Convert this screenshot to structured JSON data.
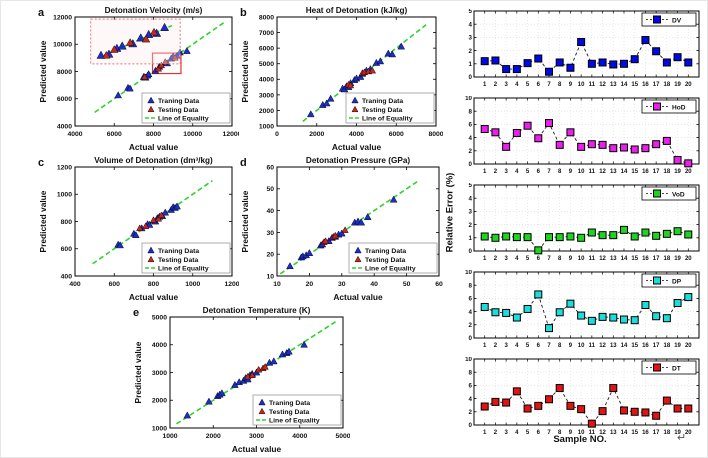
{
  "figure": {
    "trailing_mark": "↵"
  },
  "shared": {
    "axis_xlabel": "Actual value",
    "axis_ylabel": "Predicted value",
    "legend": {
      "train": "Traning Data",
      "test": "Testing Data",
      "line": "Line of Equality"
    },
    "colors": {
      "train": "#1b2ecb",
      "test": "#c9271a",
      "equality": "#2fd32f",
      "highlight": "#e83030",
      "inset_border": "#f07070"
    }
  },
  "chart_data": {
    "shared_ylabel": "Relative Error  (%)",
    "shared_xlabel": "Sample NO.",
    "samples": [
      1,
      2,
      3,
      4,
      5,
      6,
      7,
      8,
      9,
      10,
      11,
      12,
      13,
      14,
      15,
      16,
      17,
      18,
      19,
      20
    ],
    "scatter_plots": [
      {
        "id": "a",
        "letter": "a",
        "type": "scatter",
        "title": "Detonation Velocity (m/s)",
        "xlim": [
          4000,
          12000
        ],
        "ylim": [
          4000,
          12000
        ],
        "xticks": [
          4000,
          6000,
          8000,
          10000,
          12000
        ],
        "yticks": [
          4000,
          6000,
          8000,
          10000,
          12000
        ],
        "line": [
          5000,
          11700
        ],
        "train": [
          [
            6200,
            6250
          ],
          [
            6700,
            6800
          ],
          [
            6800,
            6750
          ],
          [
            7500,
            7600
          ],
          [
            7600,
            7550
          ],
          [
            7700,
            7700
          ],
          [
            7750,
            7800
          ],
          [
            8100,
            8050
          ],
          [
            8300,
            8350
          ],
          [
            8600,
            8650
          ],
          [
            8700,
            8600
          ],
          [
            8900,
            8950
          ],
          [
            9000,
            9100
          ],
          [
            9200,
            9150
          ],
          [
            9350,
            9400
          ],
          [
            9700,
            9500
          ]
        ],
        "test": [
          [
            7550,
            7600
          ],
          [
            8250,
            8200
          ],
          [
            8400,
            8450
          ],
          [
            8600,
            8700
          ],
          [
            9100,
            9000
          ]
        ],
        "highlight_box": [
          7950,
          7850,
          9400,
          9350
        ],
        "inset": {
          "region": [
            7950,
            9450
          ],
          "box": [
            0.1,
            0.02,
            0.57,
            0.41
          ],
          "train": [
            [
              8050,
              8100
            ],
            [
              8200,
              8150
            ],
            [
              8350,
              8400
            ],
            [
              8450,
              8500
            ],
            [
              8650,
              8600
            ],
            [
              8800,
              8850
            ],
            [
              8950,
              9000
            ],
            [
              9100,
              9050
            ],
            [
              9250,
              9300
            ]
          ],
          "test": [
            [
              8150,
              8100
            ],
            [
              8300,
              8350
            ],
            [
              8600,
              8650
            ],
            [
              8900,
              8800
            ],
            [
              9050,
              9100
            ]
          ]
        }
      },
      {
        "id": "b",
        "letter": "b",
        "type": "scatter",
        "title": "Heat of Detonation (kJ/kg)",
        "xlim": [
          0,
          8000
        ],
        "ylim": [
          1000,
          8000
        ],
        "xticks": [
          0,
          2000,
          4000,
          6000,
          8000
        ],
        "yticks": [
          1000,
          2000,
          3000,
          4000,
          5000,
          6000,
          7000,
          8000
        ],
        "line": [
          1300,
          7500
        ],
        "train": [
          [
            1700,
            1750
          ],
          [
            2300,
            2350
          ],
          [
            2500,
            2450
          ],
          [
            2700,
            2750
          ],
          [
            3300,
            3400
          ],
          [
            3400,
            3350
          ],
          [
            3500,
            3550
          ],
          [
            3600,
            3500
          ],
          [
            3700,
            3750
          ],
          [
            3900,
            3950
          ],
          [
            4000,
            4050
          ],
          [
            4200,
            4150
          ],
          [
            4300,
            4350
          ],
          [
            4500,
            4550
          ],
          [
            4700,
            4650
          ],
          [
            5000,
            5050
          ],
          [
            5200,
            5150
          ],
          [
            5600,
            5650
          ],
          [
            5800,
            5600
          ],
          [
            6250,
            6100
          ]
        ],
        "test": [
          [
            3600,
            3650
          ],
          [
            3700,
            3600
          ],
          [
            4300,
            4400
          ],
          [
            4400,
            4450
          ],
          [
            4600,
            4500
          ],
          [
            4800,
            4550
          ]
        ]
      },
      {
        "id": "c",
        "letter": "c",
        "type": "scatter",
        "title": "Volume of Detonation (dm³/kg)",
        "xlim": [
          400,
          1200
        ],
        "ylim": [
          400,
          1200
        ],
        "xticks": [
          400,
          600,
          800,
          1000,
          1200
        ],
        "yticks": [
          400,
          600,
          800,
          1000,
          1200
        ],
        "line": [
          490,
          1100
        ],
        "train": [
          [
            620,
            630
          ],
          [
            630,
            625
          ],
          [
            700,
            710
          ],
          [
            710,
            700
          ],
          [
            740,
            750
          ],
          [
            770,
            780
          ],
          [
            780,
            775
          ],
          [
            800,
            805
          ],
          [
            810,
            800
          ],
          [
            820,
            825
          ],
          [
            830,
            835
          ],
          [
            845,
            840
          ],
          [
            860,
            865
          ],
          [
            890,
            885
          ],
          [
            900,
            905
          ],
          [
            910,
            900
          ],
          [
            920,
            910
          ]
        ],
        "test": [
          [
            730,
            750
          ],
          [
            760,
            765
          ],
          [
            800,
            810
          ],
          [
            825,
            820
          ],
          [
            840,
            845
          ]
        ]
      },
      {
        "id": "d",
        "letter": "d",
        "type": "scatter",
        "title": "Detonation Pressure (GPa)",
        "xlim": [
          10,
          60
        ],
        "ylim": [
          10,
          60
        ],
        "xticks": [
          10,
          20,
          30,
          40,
          50,
          60
        ],
        "yticks": [
          10,
          20,
          30,
          40,
          50,
          60
        ],
        "line": [
          11,
          54
        ],
        "train": [
          [
            14,
            14.5
          ],
          [
            17.5,
            18.5
          ],
          [
            18,
            19
          ],
          [
            19,
            19.5
          ],
          [
            20,
            20.5
          ],
          [
            23.5,
            24
          ],
          [
            24,
            24.5
          ],
          [
            26,
            26
          ],
          [
            27,
            27.5
          ],
          [
            28,
            28
          ],
          [
            29,
            29
          ],
          [
            30,
            29.5
          ],
          [
            34,
            34.5
          ],
          [
            35,
            35
          ],
          [
            36,
            34.5
          ],
          [
            38,
            37
          ],
          [
            46,
            45
          ]
        ],
        "test": [
          [
            24.5,
            25.5
          ],
          [
            25,
            26
          ],
          [
            27.5,
            28
          ],
          [
            28,
            28.5
          ],
          [
            31,
            31
          ]
        ]
      },
      {
        "id": "e",
        "letter": "e",
        "type": "scatter",
        "title": "Detonation Temperature (K)",
        "xlim": [
          1000,
          5000
        ],
        "ylim": [
          1000,
          5000
        ],
        "xticks": [
          1000,
          2000,
          3000,
          4000,
          5000
        ],
        "yticks": [
          1000,
          2000,
          3000,
          4000,
          5000
        ],
        "line": [
          1150,
          4850
        ],
        "train": [
          [
            1400,
            1450
          ],
          [
            1900,
            1950
          ],
          [
            2100,
            2150
          ],
          [
            2150,
            2200
          ],
          [
            2200,
            2250
          ],
          [
            2500,
            2550
          ],
          [
            2600,
            2650
          ],
          [
            2700,
            2700
          ],
          [
            2750,
            2800
          ],
          [
            2800,
            2750
          ],
          [
            2850,
            2900
          ],
          [
            2900,
            2950
          ],
          [
            3000,
            3000
          ],
          [
            3300,
            3350
          ],
          [
            3400,
            3400
          ],
          [
            3600,
            3650
          ],
          [
            3700,
            3700
          ],
          [
            3750,
            3750
          ],
          [
            4100,
            4000
          ]
        ],
        "test": [
          [
            2800,
            2850
          ],
          [
            2900,
            2900
          ],
          [
            3050,
            3100
          ],
          [
            3150,
            3150
          ],
          [
            3200,
            3200
          ]
        ]
      }
    ],
    "error_panels": [
      {
        "label": "DV",
        "type": "line",
        "color": "#0009e6",
        "ylim": [
          0,
          5
        ],
        "yticks": [
          0,
          1,
          2,
          3,
          4,
          5
        ],
        "values": [
          1.2,
          1.25,
          0.6,
          0.6,
          1.05,
          1.4,
          0.4,
          1.1,
          0.7,
          2.65,
          1.0,
          1.1,
          0.95,
          1.0,
          1.35,
          2.8,
          1.95,
          1.1,
          1.5,
          1.1
        ]
      },
      {
        "label": "HoD",
        "type": "line",
        "color": "#ea1fea",
        "ylim": [
          0,
          10
        ],
        "yticks": [
          0,
          2,
          4,
          6,
          8,
          10
        ],
        "values": [
          5.3,
          4.8,
          2.6,
          4.7,
          5.8,
          3.9,
          6.2,
          2.9,
          4.8,
          2.6,
          3.0,
          2.9,
          2.4,
          2.5,
          2.2,
          2.4,
          3.0,
          3.5,
          0.6,
          0.1
        ]
      },
      {
        "label": "VoD",
        "type": "line",
        "color": "#1ed41e",
        "ylim": [
          0,
          5
        ],
        "yticks": [
          0,
          1,
          2,
          3,
          4,
          5
        ],
        "values": [
          1.1,
          1.0,
          1.1,
          1.05,
          1.05,
          0.05,
          1.05,
          1.05,
          1.1,
          1.0,
          1.4,
          1.2,
          1.2,
          1.6,
          1.1,
          1.4,
          1.15,
          1.3,
          1.5,
          1.25
        ]
      },
      {
        "label": "DP",
        "type": "line",
        "color": "#1cdcdc",
        "ylim": [
          0,
          10
        ],
        "yticks": [
          0,
          2,
          4,
          6,
          8,
          10
        ],
        "values": [
          4.7,
          3.9,
          3.8,
          3.1,
          4.4,
          6.6,
          1.5,
          3.9,
          5.2,
          3.4,
          2.6,
          3.2,
          3.1,
          2.8,
          2.7,
          5.0,
          3.3,
          3.0,
          5.3,
          6.2
        ]
      },
      {
        "label": "DT",
        "type": "line",
        "color": "#e11414",
        "ylim": [
          0,
          10
        ],
        "yticks": [
          0,
          2,
          4,
          6,
          8,
          10
        ],
        "values": [
          2.8,
          3.5,
          3.4,
          5.1,
          2.5,
          2.9,
          3.9,
          5.6,
          2.9,
          2.4,
          0.2,
          2.1,
          5.6,
          2.2,
          2.0,
          1.9,
          1.4,
          3.7,
          2.5,
          2.5
        ]
      }
    ]
  }
}
